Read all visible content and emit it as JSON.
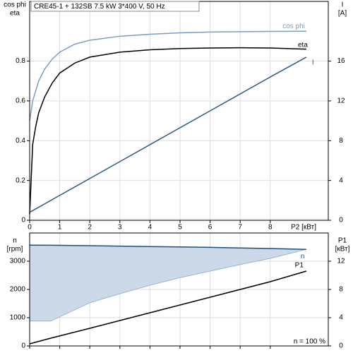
{
  "chart_data": [
    {
      "type": "line",
      "title": "CRE45-1 + 132SB   7.5 kW   3*400 V, 50 Hz",
      "xlabel": "P2 [кВт]",
      "ylabel": [
        "cos phi",
        "eta"
      ],
      "y2label": [
        "I",
        "[A]"
      ],
      "x": [
        0,
        0.1,
        0.2,
        0.3,
        0.5,
        0.75,
        1,
        1.5,
        2,
        3,
        4,
        5,
        6,
        7,
        8,
        9.2
      ],
      "xlim": [
        0,
        9.93
      ],
      "xticks": [
        0,
        1,
        2,
        3,
        4,
        5,
        6,
        7,
        8
      ],
      "ylim": [
        0,
        1.1
      ],
      "yticks": [
        0,
        0.2,
        0.4,
        0.6,
        0.8
      ],
      "y2lim": [
        0,
        22
      ],
      "y2ticks": [
        0,
        4,
        8,
        12,
        16
      ],
      "grid": true,
      "series": [
        {
          "name": "cos phi",
          "color": "#7a9cc6",
          "values": [
            0.5,
            0.6,
            0.65,
            0.7,
            0.76,
            0.81,
            0.845,
            0.885,
            0.905,
            0.925,
            0.935,
            0.942,
            0.946,
            0.948,
            0.949,
            0.95
          ]
        },
        {
          "name": "eta",
          "color": "#000000",
          "values": [
            0.03,
            0.38,
            0.47,
            0.54,
            0.62,
            0.69,
            0.74,
            0.79,
            0.82,
            0.845,
            0.857,
            0.863,
            0.866,
            0.867,
            0.866,
            0.86
          ]
        },
        {
          "name": "I",
          "color": "#2f5a8a",
          "axis": "y2",
          "values": [
            0.8,
            0.97,
            1.14,
            1.31,
            1.65,
            2.08,
            2.5,
            3.35,
            4.2,
            5.9,
            7.6,
            9.3,
            11,
            12.7,
            14.4,
            16.4
          ]
        }
      ]
    },
    {
      "type": "line",
      "ylabel": [
        "n",
        "[rpm]"
      ],
      "y2label": [
        "P1",
        "[кВт]"
      ],
      "annotation": "n = 100 %",
      "x": [
        0,
        0.7,
        2,
        3,
        4,
        5,
        6,
        7,
        8,
        9.2
      ],
      "xlim": [
        0,
        9.93
      ],
      "xticks": [
        0,
        1,
        2,
        3,
        4,
        5,
        6,
        7,
        8
      ],
      "xtick_labels": false,
      "ylim": [
        0,
        4000
      ],
      "yticks": [
        0,
        1000,
        2000,
        3000
      ],
      "y2lim": [
        0,
        16
      ],
      "y2ticks": [
        0,
        4,
        8,
        12
      ],
      "grid": true,
      "series": [
        {
          "name": "n",
          "color": "#1f4e80",
          "values": [
            3570,
            3565,
            3550,
            3535,
            3520,
            3505,
            3490,
            3470,
            3450,
            3420
          ]
        },
        {
          "name": "P1",
          "color": "#000000",
          "axis": "y2",
          "values": [
            0.3,
            1.1,
            2.5,
            3.6,
            4.7,
            5.8,
            6.9,
            8.0,
            9.1,
            10.6
          ]
        },
        {
          "color": "#ccd9e8",
          "fill_to": 0,
          "values": [
            880,
            880,
            1530,
            1850,
            2150,
            2420,
            2650,
            2880,
            3100,
            3420
          ]
        }
      ]
    }
  ]
}
